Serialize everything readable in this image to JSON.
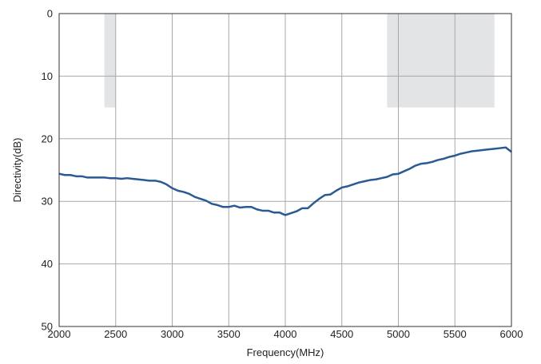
{
  "chart_data": {
    "type": "line",
    "xlabel": "Frequency(MHz)",
    "ylabel": "Directivity(dB)",
    "xlim": [
      2000,
      6000
    ],
    "ylim": [
      0,
      50
    ],
    "y_inverted": true,
    "grid": true,
    "xticks": [
      2000,
      2500,
      3000,
      3500,
      4000,
      4500,
      5000,
      5500,
      6000
    ],
    "yticks": [
      0,
      10,
      20,
      30,
      40,
      50
    ],
    "colors": {
      "line": "#2a5a94",
      "band": "#e3e4e6",
      "grid": "#a9a9a9",
      "axis": "#333333"
    },
    "shaded_regions": [
      {
        "x": [
          2400,
          2500
        ],
        "y": [
          0,
          15
        ]
      },
      {
        "x": [
          4900,
          5850
        ],
        "y": [
          0,
          15
        ]
      }
    ],
    "series": [
      {
        "x": [
          2000,
          2050,
          2100,
          2150,
          2200,
          2250,
          2300,
          2350,
          2400,
          2450,
          2500,
          2550,
          2600,
          2650,
          2700,
          2750,
          2800,
          2850,
          2900,
          2950,
          3000,
          3050,
          3100,
          3150,
          3200,
          3250,
          3300,
          3350,
          3400,
          3450,
          3500,
          3550,
          3600,
          3650,
          3700,
          3750,
          3800,
          3850,
          3900,
          3950,
          4000,
          4050,
          4100,
          4150,
          4200,
          4250,
          4300,
          4350,
          4400,
          4450,
          4500,
          4550,
          4600,
          4650,
          4700,
          4750,
          4800,
          4850,
          4900,
          4950,
          5000,
          5050,
          5100,
          5150,
          5200,
          5250,
          5300,
          5350,
          5400,
          5450,
          5500,
          5550,
          5600,
          5650,
          5700,
          5750,
          5800,
          5850,
          5900,
          5950,
          6000
        ],
        "values": [
          25.6,
          25.8,
          25.8,
          26.0,
          26.0,
          26.2,
          26.2,
          26.2,
          26.2,
          26.3,
          26.3,
          26.4,
          26.3,
          26.4,
          26.5,
          26.6,
          26.7,
          26.7,
          26.9,
          27.3,
          27.9,
          28.3,
          28.5,
          28.8,
          29.3,
          29.6,
          29.9,
          30.4,
          30.6,
          30.9,
          30.9,
          30.7,
          31.0,
          30.9,
          30.9,
          31.3,
          31.5,
          31.5,
          31.8,
          31.8,
          32.2,
          31.9,
          31.6,
          31.1,
          31.1,
          30.3,
          29.6,
          29.0,
          28.9,
          28.3,
          27.8,
          27.6,
          27.3,
          27.0,
          26.8,
          26.6,
          26.5,
          26.3,
          26.1,
          25.7,
          25.6,
          25.2,
          24.8,
          24.3,
          24.0,
          23.9,
          23.7,
          23.4,
          23.2,
          22.9,
          22.7,
          22.4,
          22.2,
          22.0,
          21.9,
          21.8,
          21.7,
          21.6,
          21.5,
          21.4,
          22.1
        ]
      }
    ]
  }
}
